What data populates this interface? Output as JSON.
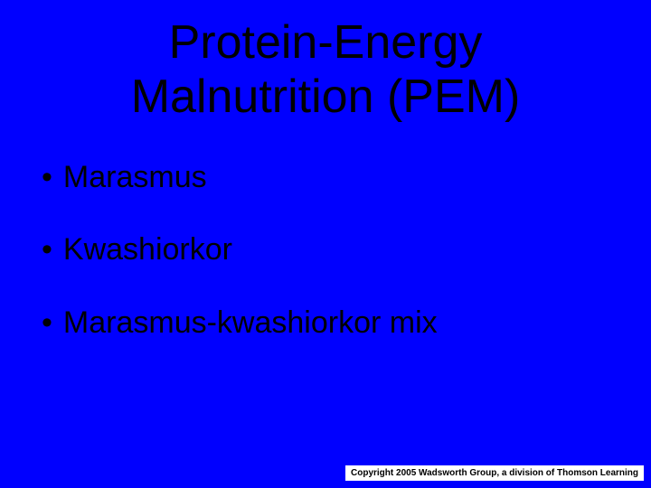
{
  "background_color": "#0000ff",
  "title": {
    "line1": "Protein-Energy",
    "line2": "Malnutrition (PEM)",
    "color": "#000000",
    "fontsize": 52
  },
  "bullets": [
    {
      "text": "Marasmus"
    },
    {
      "text": "Kwashiorkor"
    },
    {
      "text": "Marasmus-kwashiorkor mix"
    }
  ],
  "bullet_style": {
    "color": "#000000",
    "fontsize": 34,
    "marker": "•"
  },
  "copyright": {
    "text": "Copyright 2005 Wadsworth Group, a division of Thomson Learning",
    "background_color": "#ffffff",
    "color": "#000000",
    "fontsize": 10
  }
}
